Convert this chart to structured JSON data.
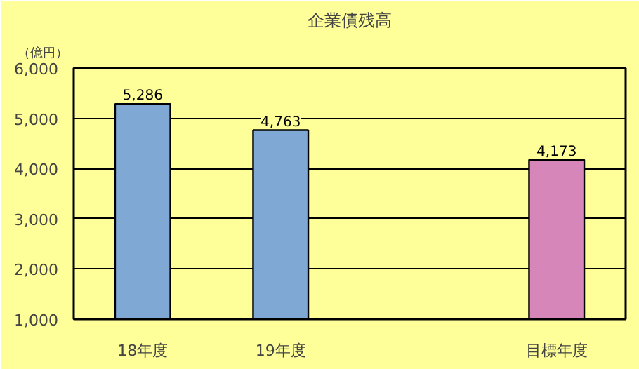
{
  "chart_data": {
    "type": "bar",
    "title": "企業債残高",
    "ylabel": "（億円）",
    "categories": [
      "18年度",
      "19年度",
      null,
      "目標年度"
    ],
    "values": [
      5286,
      4763,
      null,
      4173
    ],
    "colors": [
      "#7fa8d4",
      "#7fa8d4",
      "#ffff99",
      "#d686b8"
    ],
    "ylim": [
      1000,
      6000
    ],
    "yticks": [
      {
        "value": 1000,
        "label": "1,000"
      },
      {
        "value": 2000,
        "label": "2,000"
      },
      {
        "value": 3000,
        "label": "3,000"
      },
      {
        "value": 4000,
        "label": "4,000"
      },
      {
        "value": 5000,
        "label": "5,000"
      },
      {
        "value": 6000,
        "label": "6,000"
      }
    ],
    "grid": "y",
    "value_labels": [
      "5,286",
      "4,763",
      null,
      "4,173"
    ]
  }
}
